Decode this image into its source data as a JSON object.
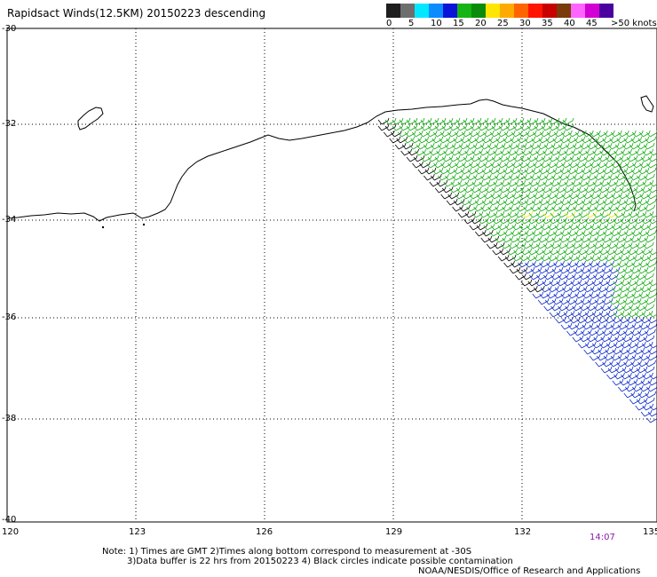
{
  "title": "Rapidsact Winds(12.5KM) 20150223 descending",
  "colorbar": {
    "colors": [
      "#1e1e1e",
      "#6e6e6e",
      "#00e8ff",
      "#0a8cff",
      "#0a14d8",
      "#14b414",
      "#0a8c0a",
      "#ffe600",
      "#ffaa00",
      "#ff6400",
      "#ff1400",
      "#c80000",
      "#7a3a0a",
      "#ff64ff",
      "#d200d2",
      "#4b00a0"
    ],
    "labels": [
      "0",
      "5",
      "10",
      "15",
      "20",
      "25",
      "30",
      "35",
      "40",
      "45"
    ],
    "unit_label": ">50 knots"
  },
  "lat_labels": [
    "-30",
    "-32",
    "-34",
    "-36",
    "-38",
    "-40"
  ],
  "lon_labels": [
    "120",
    "123",
    "126",
    "129",
    "132",
    "135"
  ],
  "time_label": "14:07",
  "notes": [
    "Note: 1) Times are GMT 2)Times along bottom correspond to measurement at -30S",
    "3)Data buffer is 22 hrs from 20150223 4) Black circles indicate possible contamination",
    "NOAA/NESDIS/Office of Research and Applications"
  ],
  "wind_colors": {
    "calm": "#000000",
    "light": "#11aa11",
    "moderate": "#ffe600",
    "south": "#0a28c8"
  }
}
